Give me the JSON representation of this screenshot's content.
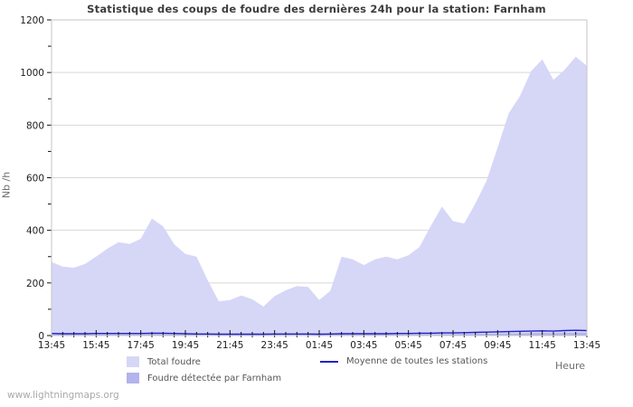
{
  "chart": {
    "title": "Statistique des coups de foudre des dernières 24h pour la station: Farnham",
    "ylabel": "Nb /h",
    "xlabel": "Heure"
  },
  "legend": {
    "total": "Total foudre",
    "farnham": "Foudre détectée par Farnham",
    "moyenne": "Moyenne de toutes les stations"
  },
  "footer": {
    "watermark": "www.lightningmaps.org"
  },
  "colors": {
    "total_area": "#d6d6f7",
    "farnham_area": "#b3b3ee",
    "moyenne_line": "#2121cc",
    "gridline": "#d7d7d7",
    "plot_border": "#c4c4c4",
    "tick": "#111111"
  },
  "chart_data": {
    "type": "area",
    "title": "Statistique des coups de foudre des dernières 24h pour la station: Farnham",
    "xlabel": "Heure",
    "ylabel": "Nb /h",
    "ylim": [
      0,
      1200
    ],
    "y_ticks": [
      0,
      200,
      400,
      600,
      800,
      1000,
      1200
    ],
    "y_minor_step": 100,
    "grid": "horizontal",
    "legend_position": "bottom",
    "x_tick_labels": [
      "13:45",
      "15:45",
      "17:45",
      "19:45",
      "21:45",
      "23:45",
      "01:45",
      "03:45",
      "05:45",
      "07:45",
      "09:45",
      "11:45",
      "13:45"
    ],
    "x": [
      "13:45",
      "14:15",
      "14:45",
      "15:15",
      "15:45",
      "16:15",
      "16:45",
      "17:15",
      "17:45",
      "18:15",
      "18:45",
      "19:15",
      "19:45",
      "20:15",
      "20:45",
      "21:15",
      "21:45",
      "22:15",
      "22:45",
      "23:15",
      "23:45",
      "00:15",
      "00:45",
      "01:15",
      "01:45",
      "02:15",
      "02:45",
      "03:15",
      "03:45",
      "04:15",
      "04:45",
      "05:15",
      "05:45",
      "06:15",
      "06:45",
      "07:15",
      "07:45",
      "08:15",
      "08:45",
      "09:15",
      "09:45",
      "10:15",
      "10:45",
      "11:15",
      "11:45",
      "12:15",
      "12:45",
      "13:15",
      "13:45"
    ],
    "series": [
      {
        "name": "Total foudre",
        "style": "area",
        "color": "#d6d6f7",
        "values": [
          280,
          262,
          258,
          272,
          300,
          330,
          355,
          348,
          368,
          445,
          415,
          347,
          310,
          300,
          210,
          130,
          135,
          152,
          138,
          110,
          150,
          172,
          188,
          185,
          135,
          170,
          300,
          290,
          268,
          290,
          300,
          290,
          305,
          337,
          416,
          490,
          435,
          426,
          502,
          588,
          715,
          846,
          910,
          1005,
          1050,
          972,
          1010,
          1060,
          1025
        ]
      },
      {
        "name": "Foudre détectée par Farnham",
        "style": "area",
        "color": "#b3b3ee",
        "values": [
          4,
          4,
          3,
          3,
          4,
          4,
          4,
          4,
          4,
          5,
          5,
          4,
          3,
          3,
          3,
          2,
          2,
          2,
          2,
          2,
          3,
          3,
          3,
          3,
          3,
          3,
          4,
          4,
          4,
          4,
          4,
          4,
          4,
          5,
          5,
          5,
          5,
          6,
          6,
          7,
          7,
          8,
          8,
          9,
          10,
          9,
          10,
          11,
          10
        ]
      },
      {
        "name": "Moyenne de toutes les stations",
        "style": "line",
        "color": "#2121cc",
        "values": [
          8,
          7,
          7,
          7,
          8,
          8,
          8,
          8,
          8,
          9,
          9,
          8,
          7,
          6,
          6,
          5,
          5,
          5,
          5,
          5,
          6,
          6,
          6,
          6,
          5,
          6,
          7,
          7,
          7,
          7,
          7,
          8,
          8,
          9,
          9,
          10,
          10,
          11,
          12,
          13,
          14,
          15,
          16,
          17,
          18,
          17,
          19,
          20,
          19
        ]
      }
    ]
  }
}
